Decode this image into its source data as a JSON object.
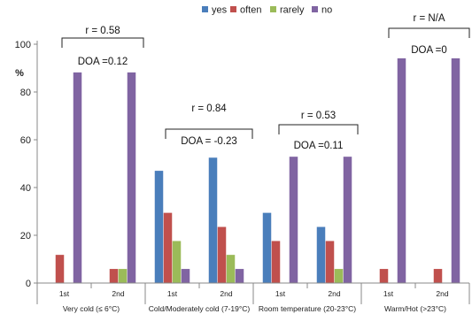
{
  "chart_data": {
    "type": "bar",
    "ylabel": "%",
    "ylim": [
      0,
      100
    ],
    "yticks": [
      0,
      20,
      40,
      60,
      80,
      100
    ],
    "grid": false,
    "legend_position": "top",
    "series": [
      {
        "name": "yes",
        "color": "#4a7ebb",
        "values": [
          0,
          0,
          47,
          52.5,
          29.4,
          23.5,
          0,
          0
        ]
      },
      {
        "name": "often",
        "color": "#c0504d",
        "values": [
          11.8,
          5.9,
          29.4,
          23.5,
          17.6,
          17.6,
          5.9,
          5.9
        ]
      },
      {
        "name": "rarely",
        "color": "#9bbb59",
        "values": [
          0,
          5.9,
          17.6,
          11.8,
          0,
          5.9,
          0,
          0
        ]
      },
      {
        "name": "no",
        "color": "#8064a2",
        "values": [
          88.2,
          88.2,
          5.9,
          5.9,
          52.9,
          52.9,
          94.1,
          94.1
        ]
      }
    ],
    "categories": [
      "1st",
      "2nd",
      "1st",
      "2nd",
      "1st",
      "2nd",
      "1st",
      "2nd"
    ],
    "groups": [
      {
        "label": "Very cold (≤ 6°C)",
        "r": "r = 0.58",
        "doa": "DOA =0.12"
      },
      {
        "label": "Cold/Moderately cold (7-19°C)",
        "r": "r = 0.84",
        "doa": "DOA = -0.23"
      },
      {
        "label": "Room temperature (20-23°C)",
        "r": "r = 0.53",
        "doa": "DOA =0.11"
      },
      {
        "label": "Warm/Hot  (>23°C)",
        "r": "r = N/A",
        "doa": "DOA =0"
      }
    ]
  }
}
